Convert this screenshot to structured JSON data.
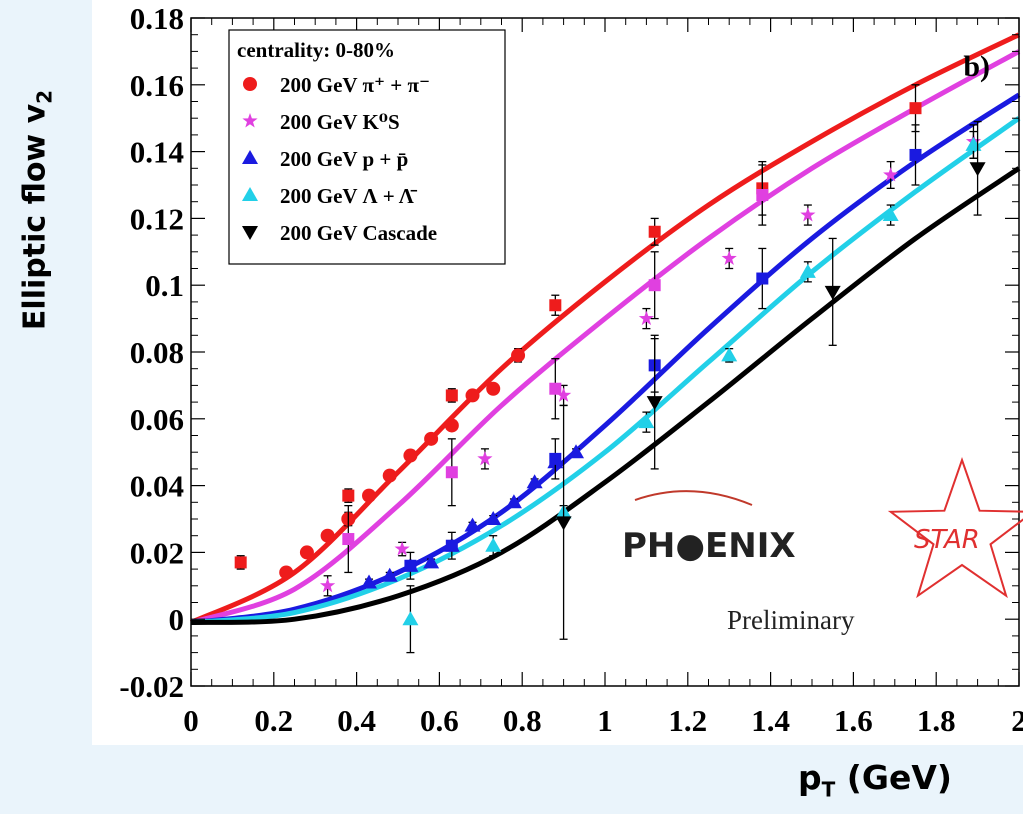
{
  "chart_data": {
    "type": "scatter",
    "title": "",
    "panel_label": "b)",
    "xlabel": "p",
    "xlabel_sub": "T",
    "xlabel_unit": " (GeV)",
    "ylabel": "Elliptic flow v",
    "ylabel_sub": "2",
    "xlim": [
      0,
      2
    ],
    "ylim": [
      -0.02,
      0.18
    ],
    "xticks": [
      "0",
      "0.2",
      "0.4",
      "0.6",
      "0.8",
      "1",
      "1.2",
      "1.4",
      "1.6",
      "1.8",
      "2"
    ],
    "yticks": [
      "-0.02",
      "0",
      "0.02",
      "0.04",
      "0.06",
      "0.08",
      "0.1",
      "0.12",
      "0.14",
      "0.16",
      "0.18"
    ],
    "legend": {
      "placement": "top-left",
      "title": "centrality: 0-80%",
      "entries": [
        {
          "label": "200 GeV π⁺ + π⁻",
          "series": 0
        },
        {
          "label": "200 GeV K⁰S",
          "series": 1
        },
        {
          "label": "200 GeV p + p̄",
          "series": 2
        },
        {
          "label": "200 GeV Λ + Λ̄",
          "series": 3
        },
        {
          "label": "200 GeV Cascade",
          "series": 4
        }
      ]
    },
    "series": [
      {
        "name": "200 GeV π⁺ + π⁻",
        "color": "#ee1c1c",
        "marker": "circle",
        "x": [
          0.23,
          0.28,
          0.33,
          0.38,
          0.43,
          0.48,
          0.53,
          0.58,
          0.63,
          0.68,
          0.73,
          0.79
        ],
        "y": [
          0.014,
          0.02,
          0.025,
          0.03,
          0.037,
          0.043,
          0.049,
          0.054,
          0.058,
          0.067,
          0.069,
          0.079
        ],
        "err": [
          0.001,
          0.001,
          0.001,
          0.002,
          0.001,
          0.001,
          0.001,
          0.001,
          0.001,
          0.001,
          0.001,
          0.002
        ]
      },
      {
        "name": "200 GeV π⁺ + π⁻ (squares)",
        "color": "#ee1c1c",
        "marker": "square",
        "x": [
          0.12,
          0.38,
          0.63,
          0.88,
          1.12,
          1.38,
          1.75
        ],
        "y": [
          0.017,
          0.037,
          0.067,
          0.094,
          0.116,
          0.129,
          0.153
        ],
        "err": [
          0.002,
          0.002,
          0.002,
          0.003,
          0.004,
          0.008,
          0.007
        ]
      },
      {
        "name": "200 GeV K⁰S",
        "color": "#e040e0",
        "marker": "star",
        "x": [
          0.33,
          0.51,
          0.71,
          0.9,
          1.1,
          1.3,
          1.49,
          1.69,
          1.89
        ],
        "y": [
          0.01,
          0.021,
          0.048,
          0.067,
          0.09,
          0.108,
          0.121,
          0.133,
          0.143
        ],
        "err": [
          0.003,
          0.002,
          0.003,
          0.003,
          0.003,
          0.003,
          0.003,
          0.004,
          0.005
        ]
      },
      {
        "name": "200 GeV K⁰S (squares)",
        "color": "#e040e0",
        "marker": "square",
        "x": [
          0.38,
          0.63,
          0.88,
          1.12,
          1.38
        ],
        "y": [
          0.024,
          0.044,
          0.069,
          0.1,
          0.127
        ],
        "err": [
          0.01,
          0.01,
          0.009,
          0.01,
          0.009
        ]
      },
      {
        "name": "200 GeV p + p̄",
        "color": "#1a1ae0",
        "marker": "triangle-up",
        "x": [
          0.43,
          0.48,
          0.53,
          0.58,
          0.63,
          0.68,
          0.73,
          0.78,
          0.83,
          0.88,
          0.93
        ],
        "y": [
          0.011,
          0.013,
          0.016,
          0.017,
          0.022,
          0.028,
          0.03,
          0.035,
          0.041,
          0.047,
          0.05
        ],
        "err": [
          0.001,
          0.001,
          0.001,
          0.001,
          0.001,
          0.001,
          0.001,
          0.001,
          0.001,
          0.001,
          0.001
        ]
      },
      {
        "name": "200 GeV p + p̄ (squares)",
        "color": "#1a1ae0",
        "marker": "square",
        "x": [
          0.53,
          0.63,
          0.88,
          1.12,
          1.38,
          1.75
        ],
        "y": [
          0.016,
          0.022,
          0.048,
          0.076,
          0.102,
          0.139
        ],
        "err": [
          0.004,
          0.004,
          0.006,
          0.008,
          0.009,
          0.009
        ]
      },
      {
        "name": "200 GeV Λ + Λ̄",
        "color": "#22d0e8",
        "marker": "triangle-up",
        "x": [
          0.53,
          0.73,
          0.9,
          1.1,
          1.3,
          1.49,
          1.69,
          1.89
        ],
        "y": [
          0.0,
          0.022,
          0.032,
          0.059,
          0.079,
          0.104,
          0.121,
          0.142
        ],
        "err": [
          0.01,
          0.003,
          0.002,
          0.003,
          0.002,
          0.003,
          0.003,
          0.004
        ]
      },
      {
        "name": "200 GeV Cascade",
        "color": "#000000",
        "marker": "triangle-down",
        "x": [
          0.9,
          1.12,
          1.55,
          1.9
        ],
        "y": [
          0.029,
          0.065,
          0.098,
          0.135
        ],
        "err": [
          0.035,
          0.02,
          0.016,
          0.014
        ]
      }
    ],
    "curves": [
      {
        "color": "#ee1c1c",
        "x": [
          0,
          0.25,
          0.5,
          0.75,
          1.0,
          1.25,
          1.5,
          1.75,
          2.0
        ],
        "y": [
          -0.001,
          0.014,
          0.044,
          0.075,
          0.101,
          0.124,
          0.143,
          0.16,
          0.175
        ]
      },
      {
        "color": "#e040e0",
        "x": [
          0,
          0.25,
          0.5,
          0.75,
          1.0,
          1.25,
          1.5,
          1.75,
          2.0
        ],
        "y": [
          -0.001,
          0.009,
          0.034,
          0.064,
          0.09,
          0.114,
          0.135,
          0.153,
          0.17
        ]
      },
      {
        "color": "#1a1ae0",
        "x": [
          0,
          0.25,
          0.5,
          0.75,
          1.0,
          1.25,
          1.5,
          1.75,
          2.0
        ],
        "y": [
          -0.001,
          0.003,
          0.014,
          0.032,
          0.058,
          0.087,
          0.114,
          0.137,
          0.157
        ]
      },
      {
        "color": "#22d0e8",
        "x": [
          0,
          0.25,
          0.5,
          0.75,
          1.0,
          1.25,
          1.5,
          1.75,
          2.0
        ],
        "y": [
          -0.001,
          0.002,
          0.012,
          0.028,
          0.05,
          0.077,
          0.104,
          0.128,
          0.15
        ]
      },
      {
        "color": "#000000",
        "x": [
          0,
          0.25,
          0.5,
          0.75,
          1.0,
          1.25,
          1.5,
          1.75,
          2.0
        ],
        "y": [
          -0.001,
          0.0,
          0.007,
          0.02,
          0.041,
          0.065,
          0.09,
          0.114,
          0.135
        ]
      }
    ]
  },
  "logos": {
    "phoenix_text": "PH●ENIX",
    "star_text": "STAR",
    "preliminary": "Preliminary"
  }
}
